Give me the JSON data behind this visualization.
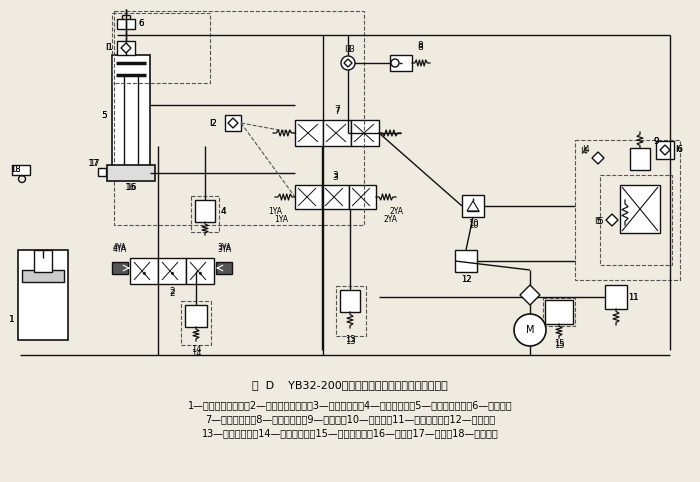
{
  "title": "图  D    YB32-200型四柱万能液压机的液压系统原理图",
  "caption_line1": "1—下缸（顶出缸）；2—下缸电液换向阀；3—主缸先导阀；4—主缸安全阀；5—上缸（主缸）；6—充液筱；",
  "caption_line2": "7—主缸换向阀；8—压力继电器；9—释压阀；10—顺序阀；11—泵站溢流阀；12—减压阀；",
  "caption_line3": "13—下缸溢流阀；14—下缸安全阀；15—远程调压阀；16—滑块；17—挡块；18—行程开关",
  "bg_color": "#f0ebe0",
  "line_color": "#111111"
}
